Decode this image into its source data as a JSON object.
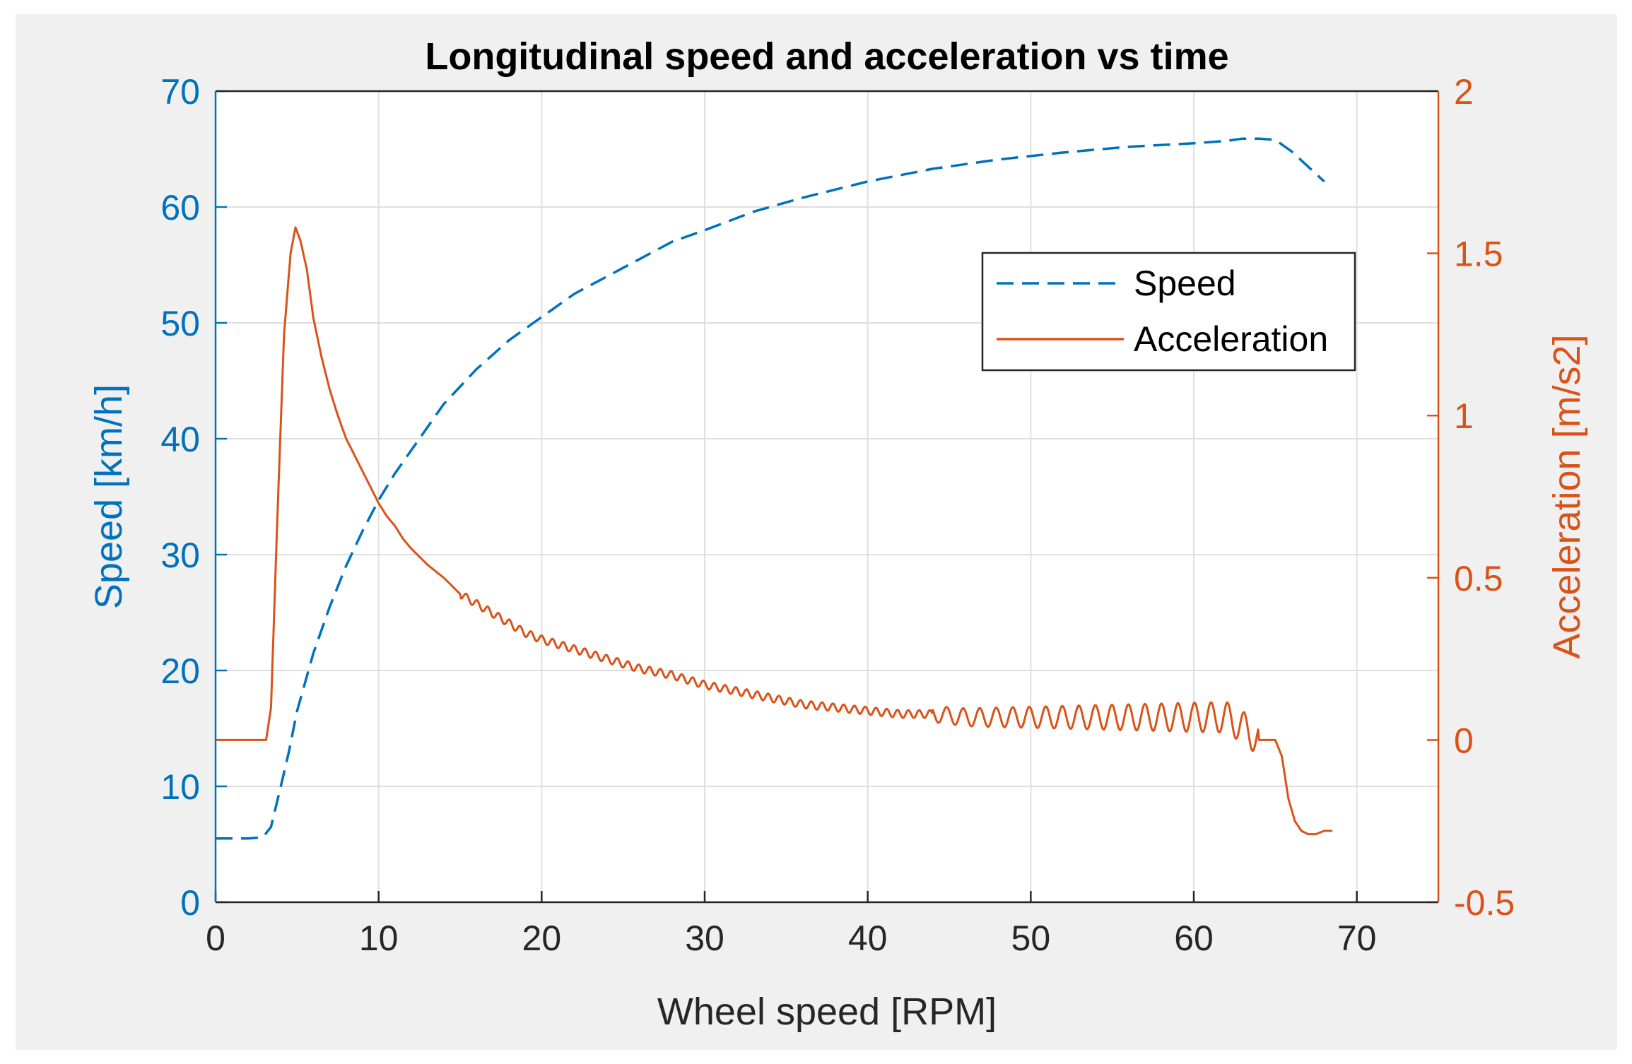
{
  "chart_data": {
    "type": "line",
    "title": "Longitudinal speed and acceleration vs time",
    "xlabel": "Wheel speed [RPM]",
    "ylabel_left": "Speed [km/h]",
    "ylabel_right": "Acceleration [m/s2]",
    "xlim": [
      0,
      75
    ],
    "ylim_left": [
      0,
      70
    ],
    "ylim_right": [
      -0.5,
      2
    ],
    "x_ticks": [
      "0",
      "10",
      "20",
      "30",
      "40",
      "50",
      "60",
      "70"
    ],
    "y_left_ticks": [
      "0",
      "10",
      "20",
      "30",
      "40",
      "50",
      "60",
      "70"
    ],
    "y_right_ticks": [
      "-0.5",
      "0",
      "0.5",
      "1",
      "1.5",
      "2"
    ],
    "grid": true,
    "legend_position": "upper-right",
    "colors": {
      "speed": "#0072BD",
      "acceleration": "#D95319",
      "left_axis": "#0072BD",
      "right_axis": "#D95319",
      "grid": "#dfdfdf",
      "title": "#000000",
      "xlabel": "#262626"
    },
    "series": [
      {
        "name": "Speed",
        "axis": "left",
        "style": "dashed",
        "x": [
          0,
          1,
          2,
          2.9,
          3.4,
          4,
          4.5,
          5,
          6,
          7,
          8,
          9,
          10,
          11,
          12,
          14,
          16,
          18,
          20,
          22,
          24,
          26,
          28,
          30,
          33,
          36,
          40,
          44,
          48,
          52,
          56,
          60,
          62,
          63,
          64,
          65,
          66,
          67,
          68
        ],
        "values": [
          5.5,
          5.5,
          5.5,
          5.6,
          6.5,
          10,
          13,
          16.5,
          21.5,
          25.5,
          29,
          32,
          34.7,
          37,
          39,
          43,
          46,
          48.5,
          50.5,
          52.5,
          54,
          55.5,
          57,
          58,
          59.6,
          60.8,
          62.2,
          63.3,
          64.1,
          64.7,
          65.2,
          65.5,
          65.7,
          65.9,
          65.9,
          65.8,
          64.8,
          63.5,
          62.2
        ]
      },
      {
        "name": "Acceleration",
        "axis": "right",
        "style": "solid",
        "x": [
          0,
          3.1,
          3.4,
          3.8,
          4.2,
          4.6,
          4.9,
          5.2,
          5.6,
          6,
          6.5,
          7,
          7.5,
          8,
          8.5,
          9,
          9.5,
          10,
          10.5,
          11,
          11.5,
          12,
          13,
          14,
          15,
          16,
          17,
          18,
          19,
          20,
          22,
          24,
          26,
          28,
          30,
          32,
          34,
          36,
          38,
          40,
          42,
          44,
          46,
          48,
          50,
          52,
          54,
          56,
          58,
          60,
          62,
          63,
          64,
          65,
          65.4,
          65.8,
          66.2,
          66.6,
          67,
          67.5,
          68,
          68.5
        ],
        "values": [
          0,
          0,
          0.1,
          0.7,
          1.25,
          1.5,
          1.58,
          1.54,
          1.45,
          1.3,
          1.18,
          1.08,
          1.0,
          0.93,
          0.88,
          0.83,
          0.78,
          0.73,
          0.69,
          0.66,
          0.62,
          0.59,
          0.54,
          0.5,
          0.45,
          0.42,
          0.39,
          0.36,
          0.33,
          0.31,
          0.28,
          0.25,
          0.22,
          0.2,
          0.17,
          0.15,
          0.13,
          0.11,
          0.1,
          0.09,
          0.08,
          0.08,
          0.07,
          0.07,
          0.07,
          0.07,
          0.07,
          0.07,
          0.07,
          0.07,
          0.07,
          0.04,
          0,
          0,
          -0.05,
          -0.18,
          -0.25,
          -0.28,
          -0.29,
          -0.29,
          -0.28,
          -0.28
        ]
      }
    ]
  }
}
